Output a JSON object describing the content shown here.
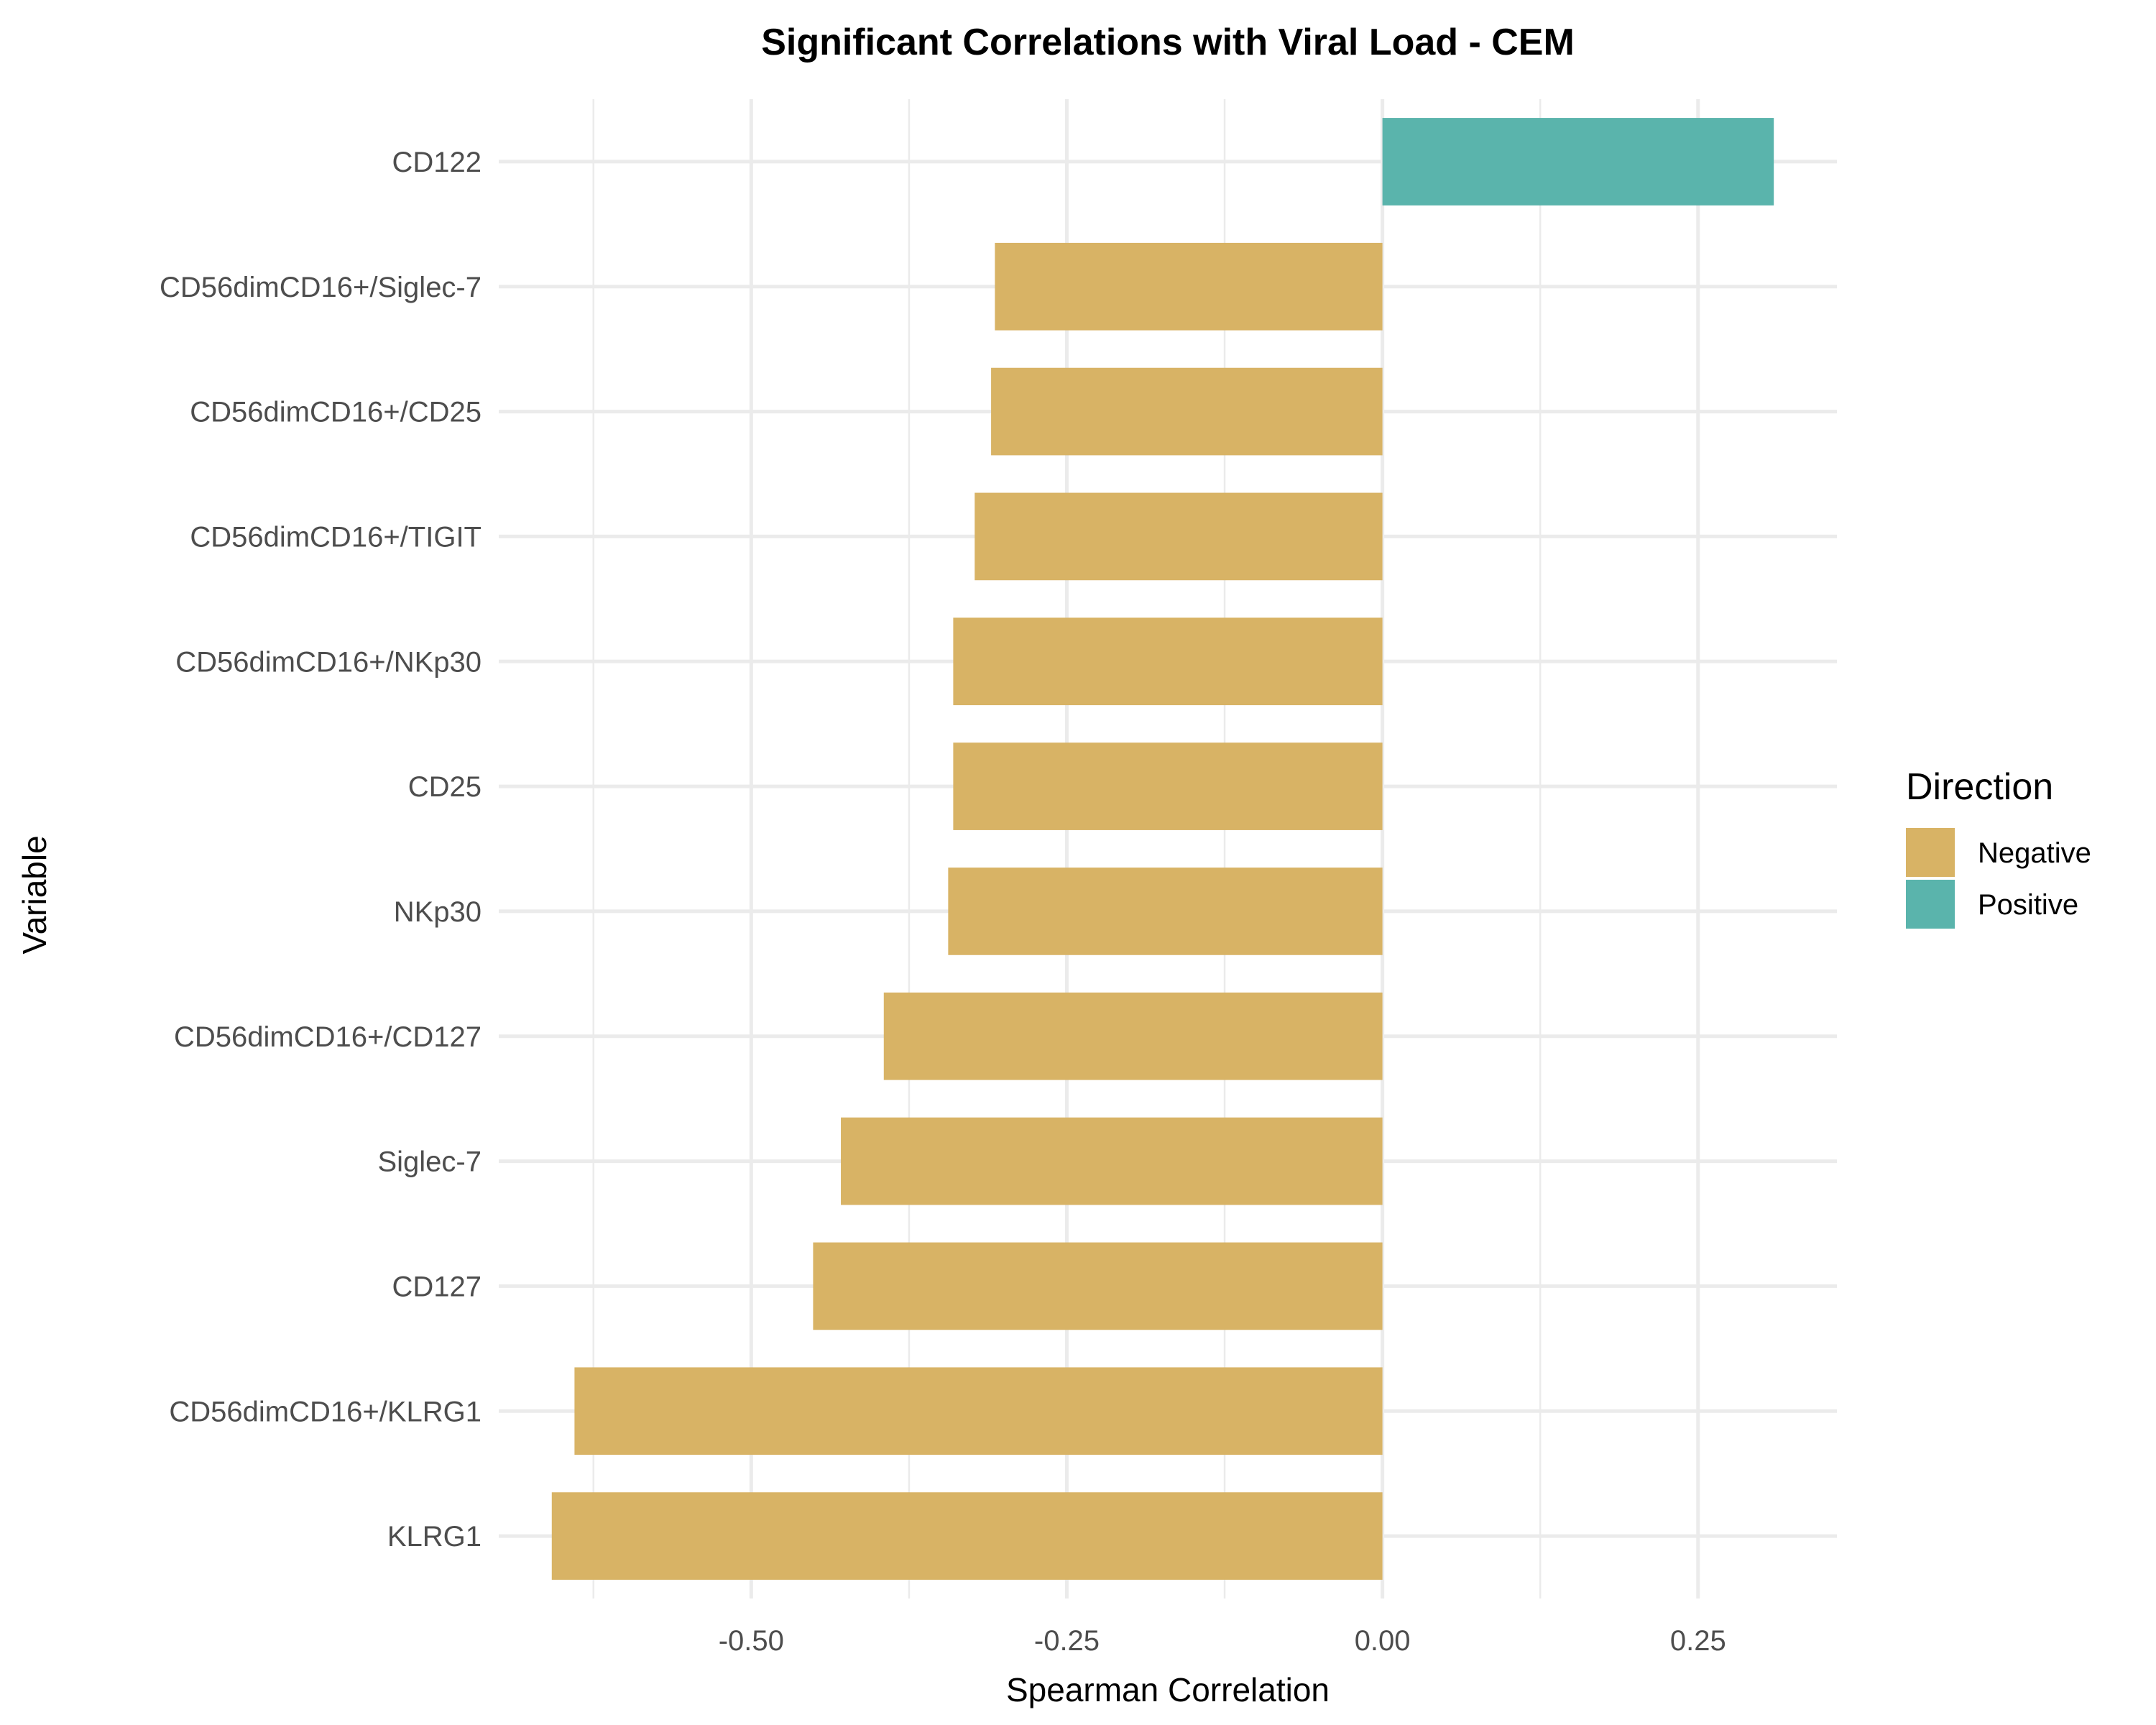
{
  "chart_data": {
    "type": "bar",
    "orientation": "horizontal",
    "title": "Significant Correlations with Viral Load - CEM",
    "xlabel": "Spearman Correlation",
    "ylabel": "Variable",
    "xlim": [
      -0.7,
      0.36
    ],
    "x_ticks": [
      -0.5,
      -0.25,
      0.0,
      0.25
    ],
    "x_tick_labels": [
      "-0.50",
      "-0.25",
      "0.00",
      "0.25"
    ],
    "grid": true,
    "legend": {
      "title": "Direction",
      "position": "right",
      "items": [
        {
          "label": "Negative",
          "color": "#D8B365"
        },
        {
          "label": "Positive",
          "color": "#5AB4AC"
        }
      ]
    },
    "categories": [
      "CD122",
      "CD56dimCD16+/Siglec-7",
      "CD56dimCD16+/CD25",
      "CD56dimCD16+/TIGIT",
      "CD56dimCD16+/NKp30",
      "CD25",
      "NKp30",
      "CD56dimCD16+/CD127",
      "Siglec-7",
      "CD127",
      "CD56dimCD16+/KLRG1",
      "KLRG1"
    ],
    "values": [
      0.31,
      -0.307,
      -0.31,
      -0.323,
      -0.34,
      -0.34,
      -0.344,
      -0.395,
      -0.429,
      -0.451,
      -0.64,
      -0.658
    ],
    "directions": [
      "Positive",
      "Negative",
      "Negative",
      "Negative",
      "Negative",
      "Negative",
      "Negative",
      "Negative",
      "Negative",
      "Negative",
      "Negative",
      "Negative"
    ]
  }
}
